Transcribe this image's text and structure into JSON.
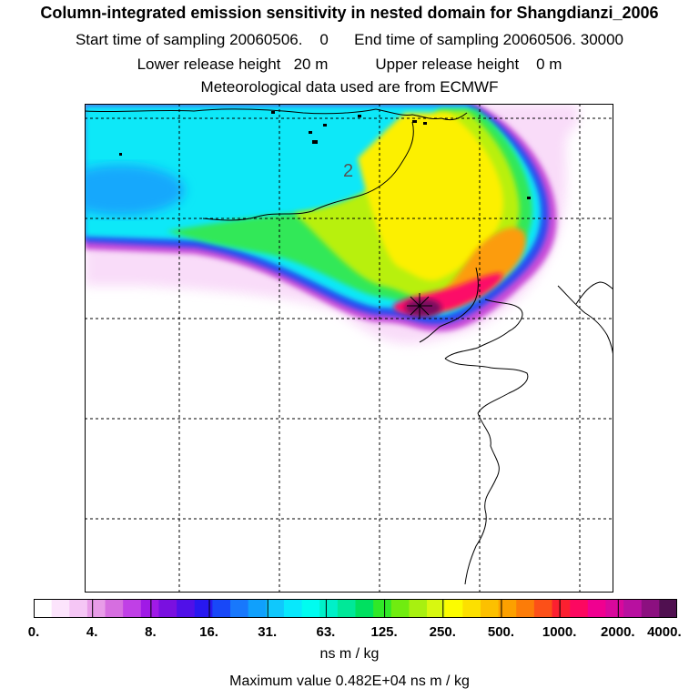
{
  "header": {
    "title": "Column-integrated emission sensitivity in nested domain for Shangdianzi_2006",
    "start_label": "Start time of sampling",
    "start_value": "20060506.    0",
    "end_label": "End time of sampling",
    "end_value": "20060506. 30000",
    "lower_label": "Lower release height",
    "lower_value": "20 m",
    "upper_label": "Upper release height",
    "upper_value": "0 m",
    "met_text": "Meteorological data used are from ECMWF"
  },
  "map": {
    "contour_label": "2",
    "release_marker": "star"
  },
  "legend": {
    "ticks": [
      "0.",
      "4.",
      "8.",
      "16.",
      "31.",
      "63.",
      "125.",
      "250.",
      "500.",
      "1000.",
      "2000.",
      "4000."
    ],
    "colors": [
      "#ffffff",
      "#fce4fc",
      "#f5c6f5",
      "#e89ce8",
      "#d66ee0",
      "#c040e6",
      "#a01ae6",
      "#7a10e0",
      "#5010e8",
      "#2818f0",
      "#1848f8",
      "#1878fc",
      "#10a0fc",
      "#10c8fc",
      "#08e8fc",
      "#00fcf0",
      "#00f0c8",
      "#00e898",
      "#00e060",
      "#30e828",
      "#70ec10",
      "#a8f010",
      "#d8f810",
      "#fcfc00",
      "#fce000",
      "#fcc000",
      "#fca000",
      "#fc7c08",
      "#fc5018",
      "#fc2030",
      "#fc0860",
      "#f00090",
      "#d8089c",
      "#b810a0",
      "#8c1080",
      "#501050"
    ],
    "unit": "ns m / kg",
    "max_text": "Maximum value  0.482E+04 ns m / kg"
  }
}
